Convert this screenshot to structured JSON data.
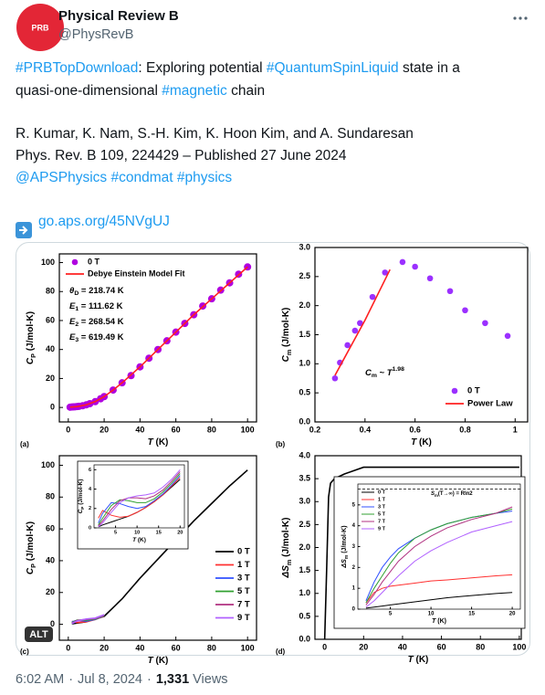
{
  "author": {
    "avatar": "PRB",
    "name": "Physical Review B",
    "handle": "@PhysRevB"
  },
  "tweet": {
    "paragraphs": [
      [
        [
          {
            "text": "#PRBTopDownload",
            "link": true
          },
          {
            "text": ": Exploring potential "
          },
          {
            "text": "#QuantumSpinLiquid",
            "link": true
          },
          {
            "text": " state in a"
          }
        ],
        [
          {
            "text": "quasi-one-dimensional "
          },
          {
            "text": "#magnetic",
            "link": true
          },
          {
            "text": " chain"
          }
        ]
      ],
      [
        [
          {
            "text": "R. Kumar, K. Nam, S.-H. Kim, K. Hoon Kim, and A. Sundaresan"
          }
        ],
        [
          {
            "text": "Phys. Rev. B 109, 224429 – Published 27 June 2024"
          }
        ],
        [
          {
            "text": "@APSPhysics",
            "link": true
          },
          {
            "text": " "
          },
          {
            "text": "#condmat",
            "link": true
          },
          {
            "text": " "
          },
          {
            "text": "#physics",
            "link": true
          }
        ]
      ],
      [
        [
          {
            "text": "go.aps.org/45NVgUJ",
            "link": true
          }
        ]
      ]
    ]
  },
  "alt_badge": "ALT",
  "chart_data": [
    {
      "type": "scatter",
      "panel_label": "(a)",
      "xlabel": [
        {
          "t": "T",
          "italic": true
        },
        {
          "t": " (K)"
        }
      ],
      "ylabel": [
        {
          "t": "C",
          "italic": true
        },
        {
          "t": "P",
          "sub": true
        },
        {
          "t": " (J/mol-K)"
        }
      ],
      "xlim": [
        -5,
        105
      ],
      "ylim": [
        -10,
        106
      ],
      "xticks": [
        0,
        20,
        40,
        60,
        80,
        100
      ],
      "yticks": [
        0,
        20,
        40,
        60,
        80,
        100
      ],
      "series": [
        {
          "name": "0 T",
          "color": "#b000e0",
          "style": "marker",
          "x": [
            1,
            2,
            3,
            4,
            5,
            6,
            8,
            10,
            12,
            15,
            18,
            20,
            25,
            30,
            35,
            40,
            45,
            50,
            55,
            60,
            65,
            70,
            75,
            80,
            85,
            90,
            95,
            100
          ],
          "values": [
            0.2,
            0.3,
            0.4,
            0.5,
            0.6,
            0.8,
            1.2,
            1.8,
            2.6,
            4,
            6,
            7.5,
            12,
            17,
            22,
            28,
            34,
            40,
            46,
            52,
            58,
            64,
            70,
            75,
            81,
            86,
            92,
            97
          ]
        },
        {
          "name": "Debye Einstein Model Fit",
          "color": "#ff2020",
          "style": "line",
          "x": [
            1,
            5,
            10,
            15,
            20,
            25,
            30,
            40,
            50,
            60,
            70,
            80,
            90,
            100
          ],
          "values": [
            0.2,
            0.6,
            1.8,
            4,
            7.5,
            12,
            17,
            28,
            40,
            52,
            64,
            75,
            86,
            97
          ]
        }
      ],
      "annotations": [
        [
          {
            "t": "θ",
            "italic": true
          },
          {
            "t": "D",
            "sub": true
          },
          {
            "t": " = 218.74 K"
          }
        ],
        [
          {
            "t": "E",
            "italic": true
          },
          {
            "t": "1",
            "sub": true
          },
          {
            "t": " = 111.62 K"
          }
        ],
        [
          {
            "t": "E",
            "italic": true
          },
          {
            "t": "2",
            "sub": true
          },
          {
            "t": " = 268.54 K"
          }
        ],
        [
          {
            "t": "E",
            "italic": true
          },
          {
            "t": "3",
            "sub": true
          },
          {
            "t": " = 619.49 K"
          }
        ]
      ]
    },
    {
      "type": "scatter",
      "panel_label": "(b)",
      "xlabel": [
        {
          "t": "T",
          "italic": true
        },
        {
          "t": " (K)"
        }
      ],
      "ylabel": [
        {
          "t": "C",
          "italic": true
        },
        {
          "t": "m",
          "sub": true
        },
        {
          "t": " (J/mol-K)"
        }
      ],
      "xlim": [
        0.2,
        1.05
      ],
      "ylim": [
        0,
        3
      ],
      "xticks": [
        0.2,
        0.4,
        0.6,
        0.8,
        1.0
      ],
      "yticks": [
        {
          "value": 0,
          "label": "0.0"
        },
        0.5,
        {
          "value": 1,
          "label": "1.0"
        },
        1.5,
        {
          "value": 2,
          "label": "2.0"
        },
        2.5,
        {
          "value": 3,
          "label": "3.0"
        }
      ],
      "series": [
        {
          "name": "0 T",
          "color": "#9b30ff",
          "style": "marker",
          "x": [
            0.28,
            0.3,
            0.33,
            0.36,
            0.38,
            0.43,
            0.48,
            0.55,
            0.6,
            0.66,
            0.74,
            0.8,
            0.88,
            0.97
          ],
          "values": [
            0.75,
            1.02,
            1.32,
            1.57,
            1.7,
            2.15,
            2.57,
            2.75,
            2.67,
            2.47,
            2.25,
            1.92,
            1.7,
            1.48
          ]
        },
        {
          "name": "Power Law",
          "color": "#ff2020",
          "style": "line",
          "x": [
            0.28,
            0.4,
            0.5
          ],
          "values": [
            0.8,
            1.75,
            2.62
          ]
        }
      ],
      "annotations": [
        [
          {
            "t": "C",
            "italic": true
          },
          {
            "t": "m",
            "sub": true
          },
          {
            "t": " ~ "
          },
          {
            "t": "T",
            "italic": true
          },
          {
            "t": "1.98",
            "sup": true
          }
        ]
      ]
    },
    {
      "type": "line",
      "panel_label": "(c)",
      "xlabel": [
        {
          "t": "T",
          "italic": true
        },
        {
          "t": " (K)"
        }
      ],
      "ylabel": [
        {
          "t": "C",
          "italic": true
        },
        {
          "t": "P",
          "sub": true
        },
        {
          "t": " (J/mol-K)"
        }
      ],
      "xlim": [
        -5,
        105
      ],
      "ylim": [
        -10,
        106
      ],
      "xticks": [
        0,
        20,
        40,
        60,
        80,
        100
      ],
      "yticks": [
        0,
        20,
        40,
        60,
        80,
        100
      ],
      "series": [
        {
          "name": "0 T",
          "color": "#000000",
          "x": [
            2,
            10,
            20,
            30,
            40,
            50,
            60,
            70,
            80,
            90,
            100
          ],
          "values": [
            0.3,
            1.6,
            5,
            16,
            29,
            41,
            53,
            65,
            76,
            87,
            97
          ]
        },
        {
          "name": "1 T",
          "color": "#ff3030",
          "x": [
            2,
            5,
            10,
            15,
            20
          ],
          "values": [
            1.8,
            1.1,
            1.6,
            3,
            5.2
          ]
        },
        {
          "name": "3 T",
          "color": "#3050ff",
          "x": [
            2,
            5,
            10,
            15,
            20
          ],
          "values": [
            1.5,
            2.5,
            2,
            3.1,
            5.4
          ]
        },
        {
          "name": "5 T",
          "color": "#30a030",
          "x": [
            2,
            5,
            10,
            15,
            20
          ],
          "values": [
            1,
            2.6,
            2.6,
            3.3,
            5.6
          ]
        },
        {
          "name": "7 T",
          "color": "#b03080",
          "x": [
            2,
            5,
            10,
            15,
            20
          ],
          "values": [
            0.7,
            2.4,
            3.1,
            3.6,
            5.8
          ]
        },
        {
          "name": "9 T",
          "color": "#b060ff",
          "x": [
            2,
            5,
            10,
            15,
            20
          ],
          "values": [
            0.5,
            2.1,
            3.3,
            3.9,
            6
          ]
        }
      ],
      "inset": {
        "xlabel": [
          {
            "t": "T",
            "italic": true
          },
          {
            "t": " (K)"
          }
        ],
        "ylabel": [
          {
            "t": "C",
            "italic": true
          },
          {
            "t": "P",
            "sub": true
          },
          {
            "t": " (J/mol-K)"
          }
        ],
        "xlim": [
          0,
          21
        ],
        "ylim": [
          0,
          6.5
        ],
        "xticks": [
          5,
          10,
          15,
          20
        ],
        "yticks": [
          0,
          2,
          4,
          6
        ],
        "series": [
          {
            "color": "#000000",
            "x": [
              1,
              2,
              4,
              6,
              8,
              10,
              12,
              14,
              16,
              18,
              20
            ],
            "values": [
              0.1,
              0.3,
              0.6,
              0.9,
              1.2,
              1.6,
              2.1,
              2.7,
              3.4,
              4.2,
              5
            ]
          },
          {
            "color": "#ff3030",
            "x": [
              1,
              2,
              4,
              6,
              8,
              10,
              12,
              14,
              16,
              18,
              20
            ],
            "values": [
              1,
              1.8,
              1.3,
              1.1,
              1.2,
              1.6,
              2.1,
              2.7,
              3.4,
              4.3,
              5.2
            ]
          },
          {
            "color": "#3050ff",
            "x": [
              1,
              2,
              4,
              6,
              8,
              10,
              12,
              14,
              16,
              18,
              20
            ],
            "values": [
              0.5,
              1.5,
              2.6,
              2.5,
              2.2,
              2,
              2.2,
              2.8,
              3.5,
              4.4,
              5.4
            ]
          },
          {
            "color": "#30a030",
            "x": [
              1,
              2,
              4,
              6,
              8,
              10,
              12,
              14,
              16,
              18,
              20
            ],
            "values": [
              0.3,
              1,
              2.3,
              2.9,
              2.8,
              2.6,
              2.6,
              3,
              3.7,
              4.6,
              5.6
            ]
          },
          {
            "color": "#b03080",
            "x": [
              1,
              2,
              4,
              6,
              8,
              10,
              12,
              14,
              16,
              18,
              20
            ],
            "values": [
              0.2,
              0.7,
              1.9,
              2.8,
              3.1,
              3.1,
              3,
              3.3,
              3.9,
              4.8,
              5.8
            ]
          },
          {
            "color": "#b060ff",
            "x": [
              1,
              2,
              4,
              6,
              8,
              10,
              12,
              14,
              16,
              18,
              20
            ],
            "values": [
              0.1,
              0.5,
              1.6,
              2.6,
              3.1,
              3.3,
              3.4,
              3.6,
              4.2,
              5,
              6
            ]
          }
        ]
      }
    },
    {
      "type": "line",
      "panel_label": "(d)",
      "xlabel": [
        {
          "t": "T",
          "italic": true
        },
        {
          "t": " (K)"
        }
      ],
      "ylabel": [
        {
          "t": "ΔS",
          "italic": true
        },
        {
          "t": "m",
          "sub": true
        },
        {
          "t": " (J/mol-K)"
        }
      ],
      "xlim": [
        -5,
        101
      ],
      "ylim": [
        0,
        4
      ],
      "xticks": [
        0,
        20,
        40,
        60,
        80,
        100
      ],
      "yticks": [
        {
          "value": 0,
          "label": "0.0"
        },
        0.5,
        {
          "value": 1,
          "label": "1.0"
        },
        1.5,
        {
          "value": 2,
          "label": "2.0"
        },
        2.5,
        {
          "value": 3,
          "label": "3.0"
        },
        3.5,
        {
          "value": 4,
          "label": "4.0"
        }
      ],
      "series": [
        {
          "color": "#000000",
          "x": [
            0,
            1,
            2,
            3,
            5,
            10,
            20,
            40,
            60,
            80,
            100
          ],
          "values": [
            0,
            1.5,
            3.1,
            3.4,
            3.5,
            3.6,
            3.75,
            3.75,
            3.75,
            3.75,
            3.75
          ]
        }
      ],
      "inset": {
        "xlabel": [
          {
            "t": "T",
            "italic": true
          },
          {
            "t": " (K)"
          }
        ],
        "ylabel": [
          {
            "t": "ΔS",
            "italic": true
          },
          {
            "t": "m",
            "sub": true
          },
          {
            "t": " (J/mol-K)"
          }
        ],
        "xlim": [
          1,
          21
        ],
        "ylim": [
          0,
          6
        ],
        "xticks": [
          5,
          10,
          15,
          20
        ],
        "yticks": [
          0,
          1,
          2,
          3,
          4,
          5
        ],
        "refline": 5.76,
        "annotations": [
          [
            {
              "t": "S",
              "italic": true
            },
            {
              "t": "m",
              "sub": true
            },
            {
              "t": "(T→∞) = Rln2"
            }
          ]
        ],
        "series": [
          {
            "name": "0 T",
            "color": "#000000",
            "x": [
              2,
              3,
              4,
              5,
              6,
              8,
              10,
              12,
              15,
              18,
              20
            ],
            "values": [
              0.05,
              0.1,
              0.15,
              0.2,
              0.25,
              0.35,
              0.45,
              0.55,
              0.65,
              0.75,
              0.8
            ]
          },
          {
            "name": "1 T",
            "color": "#ff3030",
            "x": [
              2,
              3,
              4,
              5,
              6,
              8,
              10,
              12,
              15,
              18,
              20
            ],
            "values": [
              0.3,
              0.8,
              1,
              1.1,
              1.15,
              1.25,
              1.35,
              1.4,
              1.5,
              1.6,
              1.65
            ]
          },
          {
            "name": "3 T",
            "color": "#3050ff",
            "x": [
              2,
              3,
              4,
              5,
              6,
              8,
              10,
              12,
              15,
              18,
              20
            ],
            "values": [
              0.4,
              1.3,
              2,
              2.5,
              2.9,
              3.4,
              3.8,
              4.1,
              4.4,
              4.6,
              4.7
            ]
          },
          {
            "name": "5 T",
            "color": "#30a030",
            "x": [
              2,
              3,
              4,
              5,
              6,
              8,
              10,
              12,
              15,
              18,
              20
            ],
            "values": [
              0.3,
              1,
              1.6,
              2.2,
              2.7,
              3.4,
              3.8,
              4.1,
              4.4,
              4.6,
              4.8
            ]
          },
          {
            "name": "7 T",
            "color": "#b03080",
            "x": [
              2,
              3,
              4,
              5,
              6,
              8,
              10,
              12,
              15,
              18,
              20
            ],
            "values": [
              0.2,
              0.7,
              1.3,
              1.8,
              2.3,
              3,
              3.5,
              3.9,
              4.3,
              4.6,
              4.9
            ]
          },
          {
            "name": "9 T",
            "color": "#b060ff",
            "x": [
              2,
              3,
              4,
              5,
              6,
              8,
              10,
              12,
              15,
              18,
              20
            ],
            "values": [
              0.1,
              0.4,
              0.8,
              1.2,
              1.6,
              2.3,
              2.8,
              3.2,
              3.7,
              4,
              4.2
            ]
          }
        ]
      }
    }
  ],
  "footer": [
    {
      "text": "6:02 AM"
    },
    {
      "text": "·"
    },
    {
      "text": "Jul 8, 2024"
    },
    {
      "text": "·"
    },
    {
      "text": "1,331",
      "bold": true
    },
    {
      "text": "Views"
    }
  ]
}
